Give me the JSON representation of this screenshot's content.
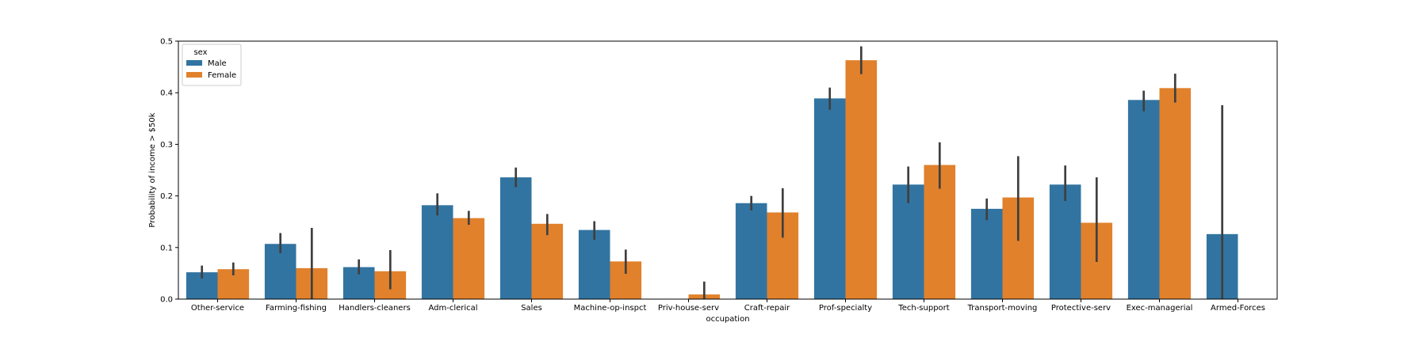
{
  "chart_data": {
    "type": "bar",
    "xlabel": "occupation",
    "ylabel": "Probability of income > $50k",
    "ylim": [
      0,
      0.5
    ],
    "yticks": [
      "0.0",
      "0.1",
      "0.2",
      "0.3",
      "0.4",
      "0.5"
    ],
    "legend": {
      "title": "sex",
      "placement": "top-left"
    },
    "categories": [
      "Other-service",
      "Farming-fishing",
      "Handlers-cleaners",
      "Adm-clerical",
      "Sales",
      "Machine-op-inspct",
      "Priv-house-serv",
      "Craft-repair",
      "Prof-specialty",
      "Tech-support",
      "Transport-moving",
      "Protective-serv",
      "Exec-managerial",
      "Armed-Forces"
    ],
    "series": [
      {
        "name": "Male",
        "color": "#3274a1",
        "values": [
          0.052,
          0.107,
          0.062,
          0.182,
          0.236,
          0.134,
          null,
          0.186,
          0.389,
          0.222,
          0.175,
          0.222,
          0.386,
          0.126
        ],
        "ci_low": [
          0.04,
          0.089,
          0.048,
          0.162,
          0.217,
          0.115,
          null,
          0.172,
          0.367,
          0.186,
          0.153,
          0.19,
          0.364,
          0.0
        ],
        "ci_high": [
          0.065,
          0.128,
          0.077,
          0.205,
          0.255,
          0.151,
          null,
          0.2,
          0.41,
          0.257,
          0.195,
          0.259,
          0.404,
          0.376
        ]
      },
      {
        "name": "Female",
        "color": "#e1812c",
        "values": [
          0.058,
          0.06,
          0.054,
          0.157,
          0.146,
          0.073,
          0.009,
          0.168,
          0.463,
          0.26,
          0.197,
          0.148,
          0.409,
          null
        ],
        "ci_low": [
          0.046,
          0.0,
          0.019,
          0.144,
          0.124,
          0.049,
          0.0,
          0.119,
          0.436,
          0.214,
          0.113,
          0.072,
          0.381,
          null
        ],
        "ci_high": [
          0.071,
          0.138,
          0.095,
          0.171,
          0.165,
          0.096,
          0.034,
          0.215,
          0.49,
          0.304,
          0.277,
          0.236,
          0.437,
          null
        ]
      }
    ],
    "grid": false
  }
}
